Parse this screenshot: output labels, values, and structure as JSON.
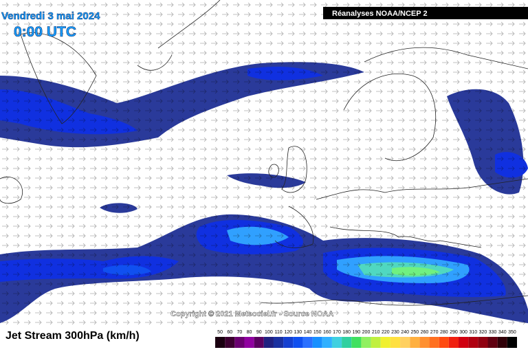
{
  "header": {
    "date": "Vendredi 3 mai 2024",
    "time": "0:00 UTC",
    "source": "Réanalyses NOAA/NCEP 2"
  },
  "copyright": "Copyright © 2021 Meteociel.fr - Source NOAA",
  "footer": {
    "title": "Jet Stream 300hPa (km/h)"
  },
  "legend": {
    "labels": [
      50,
      60,
      70,
      80,
      90,
      100,
      110,
      120,
      130,
      140,
      150,
      160,
      170,
      180,
      190,
      200,
      210,
      220,
      230,
      240,
      250,
      260,
      270,
      280,
      290,
      300,
      310,
      320,
      330,
      340,
      350
    ],
    "colors": [
      "#1a0010",
      "#3c0030",
      "#6a0070",
      "#9000a0",
      "#5a0060",
      "#202080",
      "#1a30a0",
      "#1540d0",
      "#1050f0",
      "#2a70ff",
      "#1890ff",
      "#30b0ff",
      "#40d0e0",
      "#30d0a0",
      "#40e060",
      "#90f060",
      "#c0f040",
      "#f0f030",
      "#ffe040",
      "#ffd060",
      "#ffb040",
      "#ff9030",
      "#ff7020",
      "#ff4a10",
      "#f02010",
      "#d00010",
      "#b00010",
      "#900010",
      "#600010",
      "#300008",
      "#000000"
    ]
  }
}
